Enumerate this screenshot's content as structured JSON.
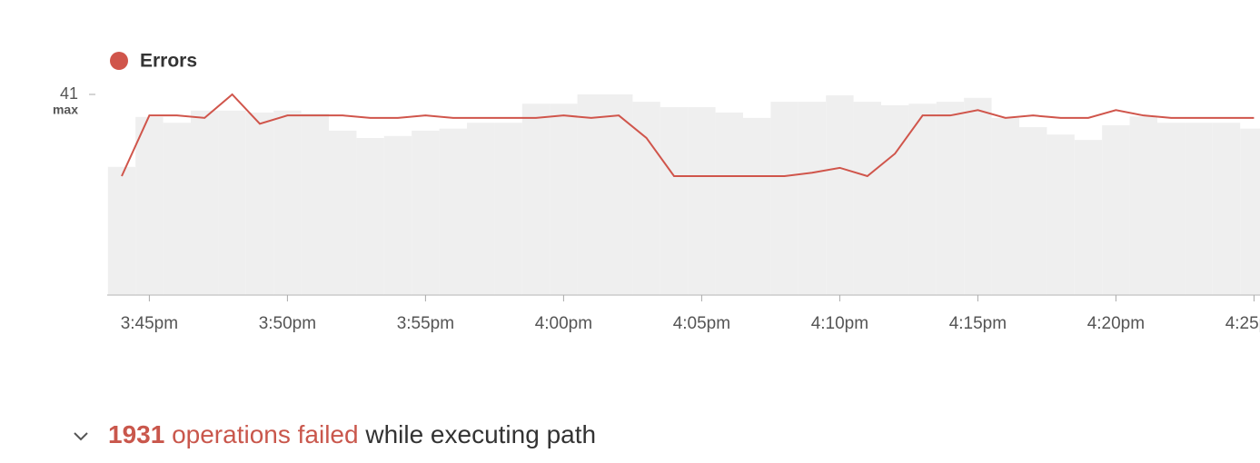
{
  "chart_data": {
    "type": "line",
    "categories": [
      null,
      "3:45pm",
      null,
      null,
      null,
      null,
      "3:50pm",
      null,
      null,
      null,
      null,
      "3:55pm",
      null,
      null,
      null,
      null,
      "4:00pm",
      null,
      null,
      null,
      null,
      "4:05pm",
      null,
      null,
      null,
      null,
      "4:10pm",
      null,
      null,
      null,
      null,
      "4:15pm",
      null,
      null,
      null,
      null,
      "4:20pm",
      null,
      null,
      null,
      null,
      "4:25pm"
    ],
    "series": [
      {
        "name": "Errors",
        "color": "#d0554b",
        "values": [
          24.3,
          36.7,
          36.7,
          36.2,
          41,
          35,
          36.7,
          36.7,
          36.7,
          36.2,
          36.2,
          36.7,
          36.2,
          36.2,
          36.2,
          36.2,
          36.7,
          36.2,
          36.7,
          32.1,
          24.3,
          24.3,
          24.3,
          24.3,
          24.3,
          25,
          26,
          24.3,
          28.9,
          36.7,
          36.7,
          37.8,
          36.2,
          36.7,
          36.2,
          36.2,
          37.8,
          36.7,
          36.2,
          36.2,
          36.2,
          36.2
        ]
      },
      {
        "type": "bar",
        "color": "#efefef",
        "values": [
          26.2,
          36.4,
          35.2,
          37.7,
          37.7,
          37.3,
          37.7,
          37.1,
          33.6,
          32.1,
          32.5,
          33.6,
          34,
          35.2,
          35.2,
          39.1,
          39.1,
          41,
          41,
          39.5,
          38.4,
          38.4,
          37.3,
          36.2,
          39.5,
          39.5,
          40.8,
          39.5,
          38.8,
          39.1,
          39.5,
          40.3,
          36.2,
          34.3,
          32.8,
          31.7,
          34.7,
          36.5,
          35.2,
          35.2,
          35.2,
          34
        ]
      }
    ],
    "ylim": [
      0,
      41
    ],
    "yticks": [
      41
    ],
    "ytick_note": "max",
    "legend": "top-left"
  },
  "summary": {
    "count": 1931,
    "highlight": "operations failed",
    "text": "while executing path"
  }
}
